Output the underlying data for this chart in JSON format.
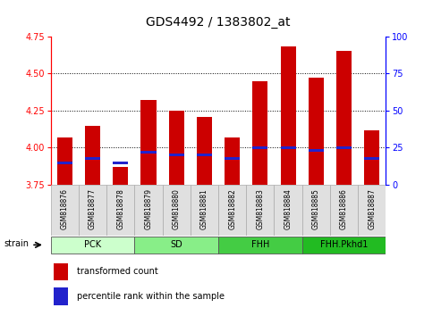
{
  "title": "GDS4492 / 1383802_at",
  "samples": [
    "GSM818876",
    "GSM818877",
    "GSM818878",
    "GSM818879",
    "GSM818880",
    "GSM818881",
    "GSM818882",
    "GSM818883",
    "GSM818884",
    "GSM818885",
    "GSM818886",
    "GSM818887"
  ],
  "transformed_count": [
    4.07,
    4.15,
    3.87,
    4.32,
    4.25,
    4.21,
    4.07,
    4.45,
    4.68,
    4.47,
    4.65,
    4.12
  ],
  "percentile_rank": [
    15,
    18,
    15,
    22,
    20,
    20,
    18,
    25,
    25,
    23,
    25,
    18
  ],
  "bar_bottom": 3.75,
  "ylim_left": [
    3.75,
    4.75
  ],
  "ylim_right": [
    0,
    100
  ],
  "yticks_left": [
    3.75,
    4.0,
    4.25,
    4.5,
    4.75
  ],
  "yticks_right": [
    0,
    25,
    50,
    75,
    100
  ],
  "grid_values": [
    4.0,
    4.25,
    4.5
  ],
  "red_color": "#CC0000",
  "blue_color": "#2222CC",
  "groups": [
    {
      "label": "PCK",
      "start": 0,
      "end": 3,
      "color": "#ccffcc"
    },
    {
      "label": "SD",
      "start": 3,
      "end": 6,
      "color": "#88ee88"
    },
    {
      "label": "FHH",
      "start": 6,
      "end": 9,
      "color": "#44cc44"
    },
    {
      "label": "FHH.Pkhd1",
      "start": 9,
      "end": 12,
      "color": "#22bb22"
    }
  ],
  "strain_label": "strain",
  "legend_red": "transformed count",
  "legend_blue": "percentile rank within the sample",
  "bar_width": 0.55,
  "blue_bar_height": 0.018,
  "title_fontsize": 10,
  "tick_fontsize": 7,
  "label_fontsize": 5.5,
  "group_fontsize": 7,
  "legend_fontsize": 7
}
